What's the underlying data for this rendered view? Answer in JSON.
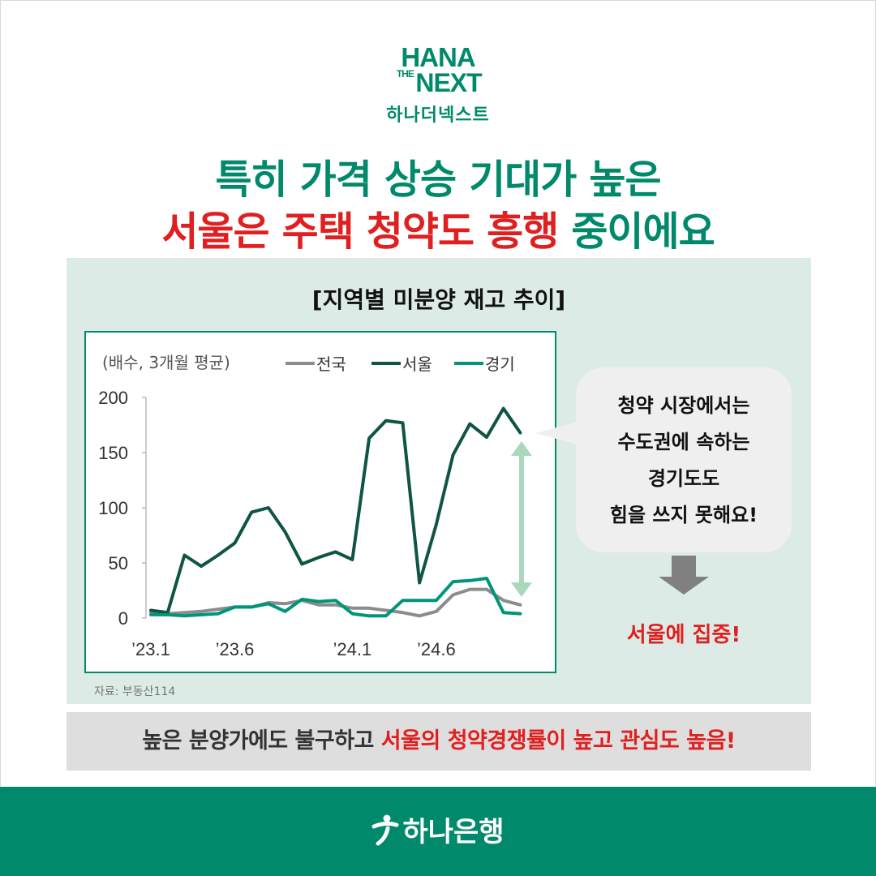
{
  "brand": {
    "logo_line1": "HANA",
    "logo_the": "THE",
    "logo_line2": "NEXT",
    "logo_korean": "하나더넥스트",
    "bank_name": "하나은행",
    "color": "#00896b"
  },
  "headline": {
    "line1": "특히 가격 상승 기대가 높은",
    "line2_red": "서울은 주택 청약도 흥행",
    "line2_green": " 중이에요"
  },
  "panel_title": "[지역별 미분양 재고 추이]",
  "chart_data": {
    "type": "line",
    "unit_label": "(배수, 3개월 평균)",
    "x_tick_labels": [
      "’23.1",
      "’23.6",
      "’24.1",
      "’24.6"
    ],
    "x_tick_index": [
      0,
      5,
      12,
      17
    ],
    "y_ticks": [
      0,
      50,
      100,
      150,
      200
    ],
    "ylim": [
      0,
      200
    ],
    "grid": false,
    "legend_position": "top",
    "series": [
      {
        "name": "전국",
        "color": "#8c8c8c",
        "values": [
          5,
          4,
          5,
          6,
          8,
          10,
          10,
          14,
          13,
          16,
          12,
          12,
          9,
          9,
          7,
          5,
          2,
          6,
          21,
          26,
          26,
          16,
          12
        ]
      },
      {
        "name": "서울",
        "color": "#0f5444",
        "values": [
          7,
          5,
          57,
          47,
          57,
          68,
          96,
          100,
          78,
          49,
          55,
          60,
          53,
          163,
          179,
          177,
          32,
          85,
          148,
          176,
          164,
          190,
          168
        ]
      },
      {
        "name": "경기",
        "color": "#00957a",
        "values": [
          3,
          3,
          2,
          3,
          4,
          10,
          10,
          13,
          6,
          17,
          15,
          16,
          4,
          2,
          2,
          16,
          16,
          16,
          33,
          34,
          36,
          5,
          4
        ]
      }
    ]
  },
  "source": "자료: 부동산114",
  "bubble": {
    "lines": [
      "청약 시장에서는",
      "수도권에 속하는",
      "경기도도",
      "힘을 쓰지 못해요!"
    ]
  },
  "focus_text": "서울에 집중!",
  "bottom_bar": {
    "plain": "높은 분양가에도 불구하고 ",
    "red": "서울의 청약경쟁률이 높고 관심도 높음!"
  },
  "colors": {
    "accent_green": "#00896b",
    "accent_red": "#e02020",
    "panel_bg": "#dcebe5",
    "gap_arrow": "#a9d8bd"
  }
}
